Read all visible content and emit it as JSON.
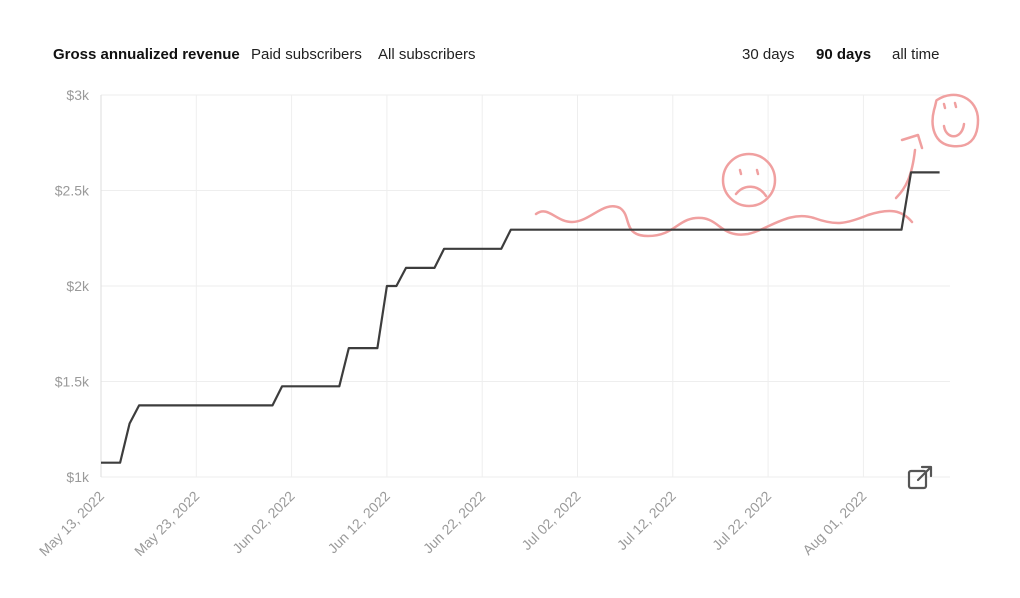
{
  "metric_tabs": [
    {
      "label": "Gross annualized revenue",
      "active": true
    },
    {
      "label": "Paid subscribers",
      "active": false
    },
    {
      "label": "All subscribers",
      "active": false
    }
  ],
  "range_tabs": [
    {
      "label": "30 days",
      "active": false
    },
    {
      "label": "90 days",
      "active": true
    },
    {
      "label": "all time",
      "active": false
    }
  ],
  "export_icon": "external-link-icon",
  "colors": {
    "line": "#3d3d3d",
    "grid": "#eeeeee",
    "tick": "#9a9a9a",
    "doodle": "#f0a0a0"
  },
  "chart_data": {
    "type": "line",
    "title": "",
    "xlabel": "",
    "ylabel": "",
    "x_axis": {
      "type": "date",
      "range": [
        "2022-05-13",
        "2022-08-09"
      ],
      "ticks": [
        "2022-05-13",
        "2022-05-23",
        "2022-06-02",
        "2022-06-12",
        "2022-06-22",
        "2022-07-02",
        "2022-07-12",
        "2022-07-22",
        "2022-08-01"
      ],
      "tick_labels": [
        "May 13, 2022",
        "May 23, 2022",
        "Jun 02, 2022",
        "Jun 12, 2022",
        "Jun 22, 2022",
        "Jul 02, 2022",
        "Jul 12, 2022",
        "Jul 22, 2022",
        "Aug 01, 2022"
      ]
    },
    "y_axis": {
      "range": [
        1000,
        3000
      ],
      "ticks": [
        1000,
        1500,
        2000,
        2500,
        3000
      ],
      "tick_labels": [
        "$1k",
        "$1.5k",
        "$2k",
        "$2.5k",
        "$3k"
      ]
    },
    "grid": true,
    "series": [
      {
        "points": [
          [
            "2022-05-13",
            1075
          ],
          [
            "2022-05-15",
            1075
          ],
          [
            "2022-05-16",
            1280
          ],
          [
            "2022-05-17",
            1375
          ],
          [
            "2022-05-31",
            1375
          ],
          [
            "2022-06-01",
            1475
          ],
          [
            "2022-06-07",
            1475
          ],
          [
            "2022-06-08",
            1675
          ],
          [
            "2022-06-11",
            1675
          ],
          [
            "2022-06-12",
            2000
          ],
          [
            "2022-06-13",
            2000
          ],
          [
            "2022-06-14",
            2095
          ],
          [
            "2022-06-17",
            2095
          ],
          [
            "2022-06-18",
            2195
          ],
          [
            "2022-06-24",
            2195
          ],
          [
            "2022-06-25",
            2295
          ],
          [
            "2022-08-05",
            2295
          ],
          [
            "2022-08-06",
            2595
          ],
          [
            "2022-08-09",
            2595
          ]
        ]
      }
    ]
  }
}
